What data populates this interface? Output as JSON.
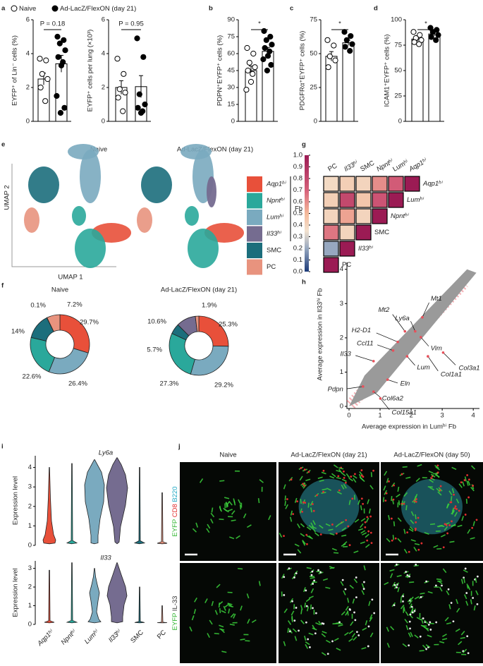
{
  "legend": [
    {
      "label": "Naive",
      "fill": "#ffffff"
    },
    {
      "label": "Ad-LacZ/FlexON (day 21)",
      "fill": "#000000"
    }
  ],
  "panel_letters": [
    "a",
    "b",
    "c",
    "d",
    "e",
    "f",
    "g",
    "h",
    "i",
    "j"
  ],
  "chart_data": [
    {
      "type": "dotbar",
      "ylabel": "EYFP⁺ of Lin⁻ cells (%)",
      "ylim": [
        0,
        6
      ],
      "yticks": [
        0,
        2,
        4,
        6
      ],
      "annotation": "P = 0.18",
      "groups": [
        {
          "mean": 2.5,
          "sem": 0.35,
          "points": [
            3.7,
            3.6,
            2.8,
            2.5,
            2.0,
            1.2
          ]
        },
        {
          "mean": 3.4,
          "sem": 0.5,
          "points": [
            5.0,
            4.8,
            4.6,
            4.2,
            3.8,
            3.5,
            3.3,
            1.5,
            0.8,
            0.5
          ]
        }
      ]
    },
    {
      "type": "dotbar",
      "ylabel": "EYFP⁺ cells per lung (×10³)",
      "ylim": [
        0,
        6
      ],
      "yticks": [
        0,
        2,
        4,
        6
      ],
      "annotation": "P = 0.95",
      "groups": [
        {
          "mean": 2.0,
          "sem": 0.4,
          "points": [
            3.7,
            2.8,
            1.9,
            1.7,
            1.4,
            0.6
          ]
        },
        {
          "mean": 2.05,
          "sem": 0.65,
          "points": [
            4.9,
            3.8,
            1.6,
            1.0,
            0.8,
            0.6,
            0.5
          ]
        }
      ]
    },
    {
      "type": "dotbar",
      "ylabel": "PDPN⁺EYFP⁺ cells (%)",
      "ylim": [
        0,
        90
      ],
      "yticks": [
        0,
        15,
        30,
        45,
        60,
        75,
        90
      ],
      "annotation": "*",
      "groups": [
        {
          "mean": 45,
          "sem": 4,
          "points": [
            65,
            60,
            52,
            48,
            45,
            42,
            35,
            28
          ]
        },
        {
          "mean": 62,
          "sem": 3.5,
          "points": [
            80,
            75,
            72,
            68,
            65,
            62,
            58,
            55,
            50,
            45
          ]
        }
      ]
    },
    {
      "type": "dotbar",
      "ylabel": "PDGFRα⁺EYFP⁺ cells (%)",
      "ylim": [
        0,
        75
      ],
      "yticks": [
        0,
        25,
        50,
        75
      ],
      "annotation": "*",
      "groups": [
        {
          "mean": 48,
          "sem": 3.5,
          "points": [
            60,
            56,
            48,
            45,
            40
          ]
        },
        {
          "mean": 58,
          "sem": 2,
          "points": [
            66,
            63,
            60,
            57,
            55,
            52
          ]
        }
      ]
    },
    {
      "type": "dotbar",
      "ylabel": "ICAM1⁺EYFP⁺ cells (%)",
      "ylim": [
        0,
        100
      ],
      "yticks": [
        0,
        25,
        50,
        75,
        100
      ],
      "annotation": "*",
      "groups": [
        {
          "mean": 81,
          "sem": 2,
          "points": [
            88,
            85,
            82,
            80,
            78,
            76
          ]
        },
        {
          "mean": 86,
          "sem": 2,
          "points": [
            92,
            90,
            88,
            85,
            83,
            80
          ]
        }
      ]
    },
    {
      "type": "umap",
      "titles": [
        "Naive",
        "Ad-LacZ/FlexON (day 21)"
      ],
      "xlabel": "UMAP 1",
      "ylabel": "UMAP 2",
      "categories": [
        "Aqp1ʰⁱ",
        "Npntʰⁱ",
        "Lumʰⁱ",
        "Il33ʰⁱ",
        "SMC",
        "PC"
      ],
      "colors": [
        "#e8503a",
        "#2aa89b",
        "#7aaabf",
        "#756c90",
        "#1c6e7c",
        "#e8937e"
      ],
      "group_label": "Fb"
    },
    {
      "type": "heatmap",
      "columns": [
        "PC",
        "Il33ʰⁱ",
        "SMC",
        "Npntʰⁱ",
        "Lumʰⁱ",
        "Aqp1ʰⁱ"
      ],
      "rows": [
        "Aqp1ʰⁱ",
        "Lumʰⁱ",
        "Npntʰⁱ",
        "SMC",
        "Il33ʰⁱ",
        "PC"
      ],
      "values": [
        [
          0.38,
          0.42,
          0.4,
          0.6,
          0.72,
          1.0
        ],
        [
          0.42,
          0.8,
          0.45,
          0.75,
          1.0
        ],
        [
          0.4,
          0.55,
          0.4,
          1.0
        ],
        [
          0.65,
          0.4,
          1.0
        ],
        [
          0.2,
          1.0
        ],
        [
          1.0
        ]
      ],
      "clim": [
        0,
        1
      ],
      "cticks": [
        {
          "value": 0,
          "label": "0.0"
        },
        0.1,
        0.2,
        0.3,
        0.4,
        0.5,
        0.6,
        0.7,
        0.8,
        0.9,
        {
          "value": 1,
          "label": "1.0"
        }
      ]
    },
    {
      "type": "donut",
      "colors": [
        "#e8503a",
        "#7aaabf",
        "#2aa89b",
        "#1c6e7c",
        "#756c90",
        "#e8937e"
      ],
      "pies": [
        {
          "title": "Naive",
          "values": [
            29.7,
            26.4,
            22.6,
            14,
            0.1,
            7.2
          ],
          "value_labels": [
            "29.7%",
            "26.4%",
            "22.6%",
            "14%",
            "0.1%",
            "7.2%"
          ]
        },
        {
          "title": "Ad-LacZ/FlexON (day 21)",
          "values": [
            25.3,
            29.2,
            27.3,
            5.7,
            10.6,
            1.9
          ],
          "value_labels": [
            "25.3%",
            "29.2%",
            "27.3%",
            "5.7%",
            "10.6%",
            "1.9%"
          ]
        }
      ]
    },
    {
      "type": "scatter",
      "xlabel": "Average expression in Lumʰⁱ Fb",
      "ylabel": "Average expression in Il33ʰⁱ Fb",
      "xlim": [
        0,
        4.2
      ],
      "ylim": [
        0,
        4.2
      ],
      "xticks": [
        0,
        1,
        2,
        3,
        4
      ],
      "yticks": [
        0,
        1,
        2,
        3,
        4
      ],
      "genes": {
        "labels": [
          "Mt1",
          "Mt2",
          "Ly6a",
          "H2-D1",
          "Ccl11",
          "Vim",
          "Il33",
          "Pdpn",
          "Eln",
          "Lum",
          "Col1a1",
          "Col3a1",
          "Col6a2",
          "Col15a1"
        ],
        "x": [
          2.36,
          1.8,
          2.13,
          1.57,
          1.42,
          2.31,
          0.79,
          0.45,
          1.24,
          1.87,
          2.54,
          3.03,
          0.79,
          1.01
        ],
        "y": [
          2.6,
          2.19,
          2.19,
          1.88,
          1.63,
          2.02,
          1.32,
          0.58,
          0.78,
          1.46,
          1.46,
          1.57,
          0.43,
          0.23
        ]
      }
    },
    {
      "type": "violin",
      "title": "Ly6a",
      "ylabel": "Expression level",
      "ylim": [
        0,
        4.6
      ],
      "yticks": [
        0,
        1,
        2,
        3,
        4
      ],
      "colors": [
        "#e8503a",
        "#2aa89b",
        "#7aaabf",
        "#756c90",
        "#1c6e7c",
        "#e8937e"
      ],
      "values": [
        4.0,
        4.2,
        4.4,
        4.5,
        4.0,
        2.7
      ]
    },
    {
      "type": "violin",
      "title": "Il33",
      "ylabel": "Expression level",
      "ylim": [
        0,
        3.4
      ],
      "yticks": [
        0,
        1,
        2,
        3
      ],
      "categories": [
        "Aqp1ʰⁱ",
        "Npntʰⁱ",
        "Lumʰⁱ",
        "Il33ʰⁱ",
        "SMC",
        "PC"
      ],
      "colors": [
        "#e8503a",
        "#2aa89b",
        "#7aaabf",
        "#756c90",
        "#1c6e7c",
        "#e8937e"
      ],
      "values": [
        2.9,
        3.3,
        3.0,
        3.3,
        2.0,
        1.0
      ]
    }
  ],
  "micrographs": {
    "columns": [
      "Naive",
      "Ad-LacZ/FlexON (day 21)",
      "Ad-LacZ/FlexON (day 50)"
    ],
    "rows": [
      [
        {
          "text": "EYFP",
          "color": "#2fb52f"
        },
        {
          "text": "CD8",
          "color": "#e02828"
        },
        {
          "text": "B220",
          "color": "#22a9c4"
        }
      ],
      [
        {
          "text": "EYFP",
          "color": "#2fb52f"
        },
        {
          "text": "IL-33",
          "color": "#333333"
        }
      ]
    ]
  }
}
